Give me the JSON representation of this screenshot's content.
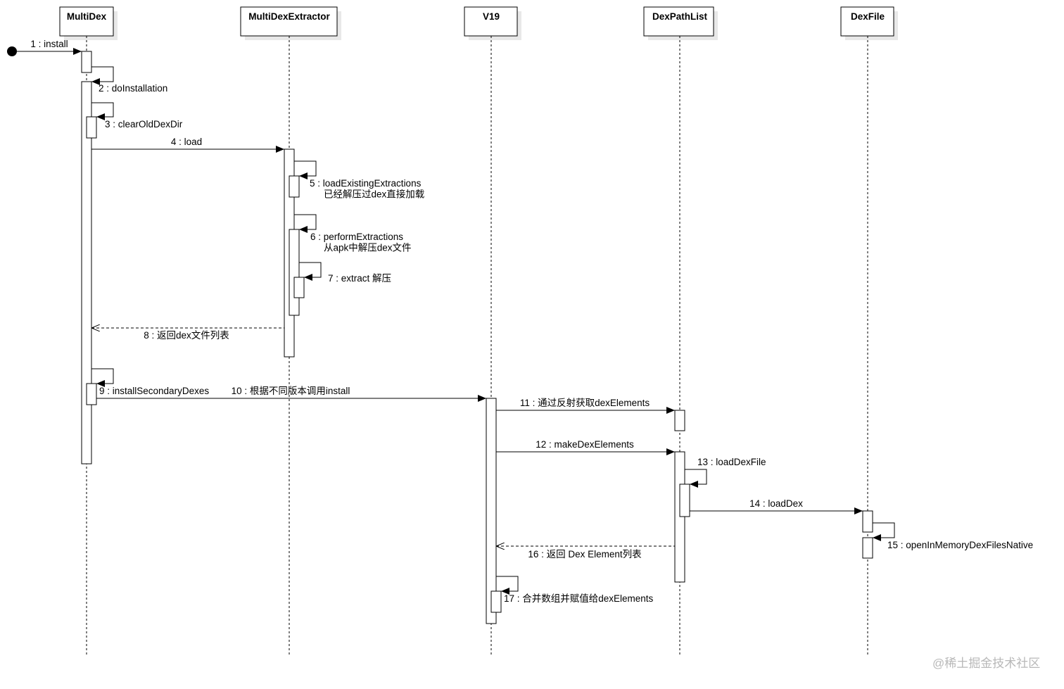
{
  "diagram_type": "sequence",
  "colors": {
    "line": "#000000",
    "shadow": "#e8e8e8",
    "watermark": "#b8b8b8"
  },
  "participants": [
    {
      "id": "multidex",
      "name": "MultiDex"
    },
    {
      "id": "extractor",
      "name": "MultiDexExtractor"
    },
    {
      "id": "v19",
      "name": "V19"
    },
    {
      "id": "dexpathlist",
      "name": "DexPathList"
    },
    {
      "id": "dexfile",
      "name": "DexFile"
    }
  ],
  "messages": [
    {
      "n": 1,
      "from": "start",
      "to": "multidex",
      "type": "call",
      "lines": [
        "1 : install"
      ]
    },
    {
      "n": 2,
      "from": "multidex",
      "to": "multidex",
      "type": "self",
      "lines": [
        "2 : doInstallation"
      ]
    },
    {
      "n": 3,
      "from": "multidex",
      "to": "multidex",
      "type": "self",
      "lines": [
        "3 : clearOldDexDir"
      ]
    },
    {
      "n": 4,
      "from": "multidex",
      "to": "extractor",
      "type": "call",
      "lines": [
        "4 : load"
      ]
    },
    {
      "n": 5,
      "from": "extractor",
      "to": "extractor",
      "type": "self",
      "lines": [
        "5 : loadExistingExtractions",
        "已经解压过dex直接加载"
      ]
    },
    {
      "n": 6,
      "from": "extractor",
      "to": "extractor",
      "type": "self",
      "lines": [
        "6 : performExtractions",
        "从apk中解压dex文件"
      ]
    },
    {
      "n": 7,
      "from": "extractor",
      "to": "extractor",
      "type": "self",
      "lines": [
        "7 : extract 解压"
      ]
    },
    {
      "n": 8,
      "from": "extractor",
      "to": "multidex",
      "type": "return",
      "lines": [
        "8 : 返回dex文件列表"
      ]
    },
    {
      "n": 9,
      "from": "multidex",
      "to": "multidex",
      "type": "self",
      "lines": [
        "9 : installSecondaryDexes"
      ]
    },
    {
      "n": 10,
      "from": "multidex",
      "to": "v19",
      "type": "call",
      "lines": [
        "10 : 根据不同版本调用install"
      ]
    },
    {
      "n": 11,
      "from": "v19",
      "to": "dexpathlist",
      "type": "call",
      "lines": [
        "11 : 通过反射获取dexElements"
      ]
    },
    {
      "n": 12,
      "from": "v19",
      "to": "dexpathlist",
      "type": "call",
      "lines": [
        "12 : makeDexElements"
      ]
    },
    {
      "n": 13,
      "from": "dexpathlist",
      "to": "dexpathlist",
      "type": "self",
      "lines": [
        "13 : loadDexFile"
      ]
    },
    {
      "n": 14,
      "from": "dexpathlist",
      "to": "dexfile",
      "type": "call",
      "lines": [
        "14 : loadDex"
      ]
    },
    {
      "n": 15,
      "from": "dexfile",
      "to": "dexfile",
      "type": "self",
      "lines": [
        "15 : openInMemoryDexFilesNative"
      ]
    },
    {
      "n": 16,
      "from": "dexpathlist",
      "to": "v19",
      "type": "return",
      "lines": [
        "16 : 返回 Dex Element列表"
      ]
    },
    {
      "n": 17,
      "from": "v19",
      "to": "v19",
      "type": "self",
      "lines": [
        "17 : 合并数组并赋值给dexElements"
      ]
    }
  ],
  "watermark": "@稀土掘金技术社区"
}
